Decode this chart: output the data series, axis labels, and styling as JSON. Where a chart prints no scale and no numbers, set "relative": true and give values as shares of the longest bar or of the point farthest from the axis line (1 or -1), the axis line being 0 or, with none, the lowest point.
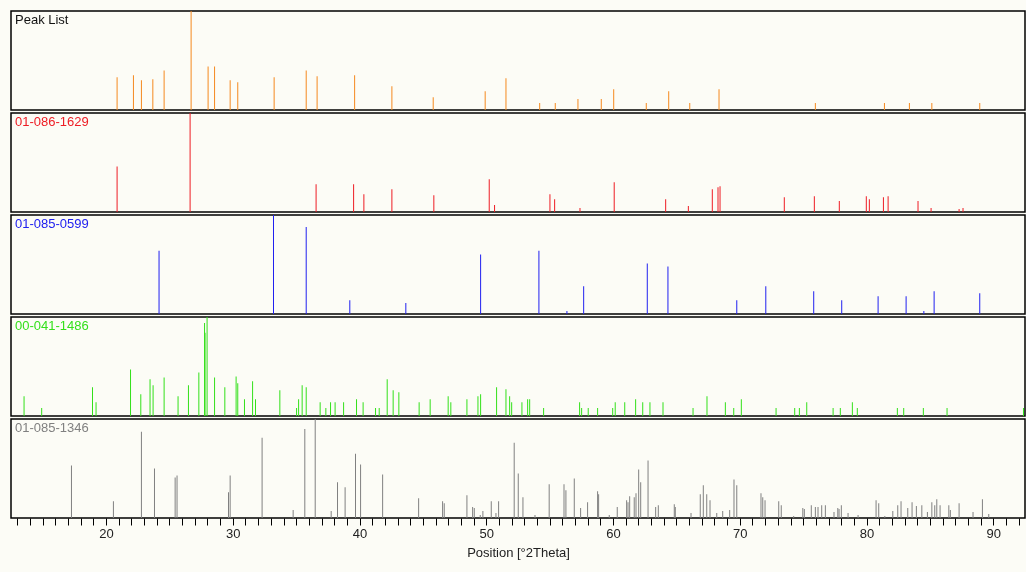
{
  "chart_data": [
    {
      "type": "bar",
      "title": "Peak List",
      "relative": true,
      "xlim": [
        12.5,
        92.5
      ],
      "tick_labels": false,
      "x": [
        20.87,
        22.16,
        22.79,
        23.69,
        24.58,
        26.71,
        28.05,
        28.56,
        29.79,
        30.39,
        33.26,
        35.79,
        36.65,
        39.61,
        42.55,
        45.81,
        49.91,
        51.55,
        54.21,
        55.44,
        57.23,
        59.07,
        60.05,
        62.62,
        64.39,
        66.05,
        68.36,
        75.96,
        81.41,
        83.38,
        85.15,
        88.93
      ],
      "series": [
        {
          "color": "#f5891f",
          "values": [
            0.33,
            0.35,
            0.3,
            0.31,
            0.4,
            1,
            0.44,
            0.44,
            0.3,
            0.28,
            0.33,
            0.4,
            0.34,
            0.35,
            0.24,
            0.13,
            0.19,
            0.32,
            0.07,
            0.07,
            0.11,
            0.11,
            0.21,
            0.07,
            0.19,
            0.07,
            0.21,
            0.07,
            0.07,
            0.07,
            0.07,
            0.07
          ]
        }
      ]
    },
    {
      "type": "bar",
      "relative": true,
      "xlim": [
        12.5,
        92.5
      ],
      "tick_labels": false,
      "x": [
        20.87,
        26.63,
        36.57,
        39.53,
        40.34,
        42.55,
        45.86,
        50.23,
        50.65,
        55.02,
        55.39,
        57.39,
        60.09,
        64.15,
        65.94,
        67.83,
        68.28,
        68.44,
        73.51,
        75.88,
        77.85,
        79.98,
        80.22,
        81.33,
        81.7,
        84.06,
        85.09,
        87.3,
        87.61
      ],
      "series": [
        {
          "name": "01-086-1629",
          "color": "#ee1c24",
          "values": [
            0.46,
            1,
            0.28,
            0.28,
            0.18,
            0.23,
            0.17,
            0.33,
            0.07,
            0.18,
            0.13,
            0.04,
            0.3,
            0.13,
            0.06,
            0.23,
            0.25,
            0.26,
            0.15,
            0.16,
            0.11,
            0.16,
            0.13,
            0.15,
            0.16,
            0.11,
            0.04,
            0.03,
            0.04
          ]
        }
      ]
    },
    {
      "type": "bar",
      "relative": true,
      "xlim": [
        12.5,
        92.5
      ],
      "tick_labels": false,
      "x": [
        24.18,
        33.21,
        35.79,
        39.23,
        43.65,
        49.55,
        54.15,
        56.36,
        57.68,
        62.7,
        64.33,
        69.76,
        72.05,
        75.83,
        78.04,
        80.91,
        83.12,
        84.52,
        85.33,
        88.93
      ],
      "series": [
        {
          "name": "01-085-0599",
          "color": "#2020f0",
          "values": [
            0.64,
            1,
            0.88,
            0.14,
            0.11,
            0.6,
            0.64,
            0.03,
            0.28,
            0.51,
            0.48,
            0.14,
            0.28,
            0.23,
            0.14,
            0.18,
            0.18,
            0.03,
            0.23,
            0.21
          ]
        }
      ]
    },
    {
      "type": "bar",
      "relative": true,
      "xlim": [
        12.5,
        92.5
      ],
      "tick_labels": false,
      "x": [
        13.53,
        14.92,
        18.93,
        19.21,
        21.93,
        22.74,
        23.47,
        23.71,
        24.58,
        25.68,
        26.5,
        27.32,
        27.77,
        27.81,
        27.97,
        28.56,
        29.37,
        30.26,
        30.39,
        30.92,
        31.56,
        31.79,
        33.71,
        35.03,
        35.19,
        35.47,
        35.79,
        36.89,
        37.34,
        37.71,
        38.07,
        38.74,
        39.76,
        40.28,
        41.26,
        41.55,
        42.18,
        42.65,
        43.1,
        44.7,
        45.57,
        46.99,
        47.2,
        48.47,
        49.34,
        49.55,
        50.81,
        51.55,
        51.84,
        52.0,
        52.81,
        53.26,
        53.42,
        54.52,
        57.36,
        57.52,
        58.04,
        58.78,
        59.97,
        60.17,
        60.92,
        61.78,
        62.34,
        62.91,
        63.94,
        66.31,
        67.41,
        68.86,
        69.52,
        70.12,
        72.86,
        74.33,
        74.7,
        75.28,
        77.36,
        77.93,
        78.88,
        79.27,
        82.43,
        82.93,
        84.48,
        86.35,
        92.38
      ],
      "series": [
        {
          "name": "00-041-1486",
          "color": "#33e01a",
          "values": [
            0.2,
            0.08,
            0.29,
            0.14,
            0.47,
            0.22,
            0.37,
            0.31,
            0.39,
            0.2,
            0.31,
            0.44,
            0.94,
            0.84,
            1,
            0.39,
            0.29,
            0.4,
            0.33,
            0.17,
            0.35,
            0.17,
            0.26,
            0.08,
            0.17,
            0.31,
            0.29,
            0.14,
            0.08,
            0.14,
            0.14,
            0.14,
            0.17,
            0.14,
            0.08,
            0.08,
            0.37,
            0.26,
            0.24,
            0.14,
            0.17,
            0.2,
            0.14,
            0.17,
            0.2,
            0.22,
            0.29,
            0.27,
            0.2,
            0.14,
            0.14,
            0.17,
            0.17,
            0.08,
            0.14,
            0.08,
            0.08,
            0.08,
            0.08,
            0.14,
            0.14,
            0.17,
            0.14,
            0.14,
            0.14,
            0.08,
            0.2,
            0.14,
            0.08,
            0.17,
            0.08,
            0.08,
            0.08,
            0.14,
            0.08,
            0.08,
            0.14,
            0.08,
            0.08,
            0.08,
            0.08,
            0.08,
            0.08
          ]
        }
      ]
    },
    {
      "type": "bar",
      "relative": true,
      "xlim": [
        12.5,
        92.5
      ],
      "xlabel": "Position [°2Theta]",
      "xticks": [
        {
          "value": 13,
          "label": null
        },
        {
          "value": 14,
          "label": null
        },
        {
          "value": 15,
          "label": null
        },
        {
          "value": 16,
          "label": null
        },
        {
          "value": 17,
          "label": null
        },
        {
          "value": 18,
          "label": null
        },
        {
          "value": 19,
          "label": null
        },
        20,
        {
          "value": 21,
          "label": null
        },
        {
          "value": 22,
          "label": null
        },
        {
          "value": 23,
          "label": null
        },
        {
          "value": 24,
          "label": null
        },
        {
          "value": 25,
          "label": null
        },
        {
          "value": 26,
          "label": null
        },
        {
          "value": 27,
          "label": null
        },
        {
          "value": 28,
          "label": null
        },
        {
          "value": 29,
          "label": null
        },
        30,
        {
          "value": 31,
          "label": null
        },
        {
          "value": 32,
          "label": null
        },
        {
          "value": 33,
          "label": null
        },
        {
          "value": 34,
          "label": null
        },
        {
          "value": 35,
          "label": null
        },
        {
          "value": 36,
          "label": null
        },
        {
          "value": 37,
          "label": null
        },
        {
          "value": 38,
          "label": null
        },
        {
          "value": 39,
          "label": null
        },
        40,
        {
          "value": 41,
          "label": null
        },
        {
          "value": 42,
          "label": null
        },
        {
          "value": 43,
          "label": null
        },
        {
          "value": 44,
          "label": null
        },
        {
          "value": 45,
          "label": null
        },
        {
          "value": 46,
          "label": null
        },
        {
          "value": 47,
          "label": null
        },
        {
          "value": 48,
          "label": null
        },
        {
          "value": 49,
          "label": null
        },
        50,
        {
          "value": 51,
          "label": null
        },
        {
          "value": 52,
          "label": null
        },
        {
          "value": 53,
          "label": null
        },
        {
          "value": 54,
          "label": null
        },
        {
          "value": 55,
          "label": null
        },
        {
          "value": 56,
          "label": null
        },
        {
          "value": 57,
          "label": null
        },
        {
          "value": 58,
          "label": null
        },
        {
          "value": 59,
          "label": null
        },
        60,
        {
          "value": 61,
          "label": null
        },
        {
          "value": 62,
          "label": null
        },
        {
          "value": 63,
          "label": null
        },
        {
          "value": 64,
          "label": null
        },
        {
          "value": 65,
          "label": null
        },
        {
          "value": 66,
          "label": null
        },
        {
          "value": 67,
          "label": null
        },
        {
          "value": 68,
          "label": null
        },
        {
          "value": 69,
          "label": null
        },
        70,
        {
          "value": 71,
          "label": null
        },
        {
          "value": 72,
          "label": null
        },
        {
          "value": 73,
          "label": null
        },
        {
          "value": 74,
          "label": null
        },
        {
          "value": 75,
          "label": null
        },
        {
          "value": 76,
          "label": null
        },
        {
          "value": 77,
          "label": null
        },
        {
          "value": 78,
          "label": null
        },
        {
          "value": 79,
          "label": null
        },
        80,
        {
          "value": 81,
          "label": null
        },
        {
          "value": 82,
          "label": null
        },
        {
          "value": 83,
          "label": null
        },
        {
          "value": 84,
          "label": null
        },
        {
          "value": 85,
          "label": null
        },
        {
          "value": 86,
          "label": null
        },
        {
          "value": 87,
          "label": null
        },
        {
          "value": 88,
          "label": null
        },
        {
          "value": 89,
          "label": null
        },
        90,
        {
          "value": 91,
          "label": null
        },
        {
          "value": 92,
          "label": null
        }
      ],
      "x": [
        17.27,
        20.58,
        22.79,
        23.82,
        25.45,
        25.6,
        29.66,
        29.79,
        32.31,
        34.76,
        35.68,
        36.5,
        37.76,
        38.26,
        38.86,
        39.68,
        40.08,
        41.82,
        44.66,
        46.55,
        46.68,
        48.47,
        48.92,
        49.05,
        49.52,
        49.73,
        50.39,
        50.76,
        50.97,
        52.2,
        52.52,
        52.89,
        53.84,
        54.96,
        56.13,
        56.28,
        56.94,
        57.44,
        57.99,
        58.78,
        58.86,
        59.7,
        60.33,
        61.07,
        61.18,
        61.31,
        61.67,
        61.81,
        62.02,
        62.18,
        62.76,
        63.36,
        63.57,
        64.83,
        64.91,
        66.15,
        66.88,
        67.12,
        67.39,
        67.65,
        68.18,
        68.65,
        69.2,
        69.54,
        69.76,
        71.67,
        71.81,
        71.99,
        73.07,
        73.27,
        74.25,
        74.97,
        75.09,
        75.64,
        75.96,
        76.17,
        76.46,
        76.75,
        77.43,
        77.73,
        77.83,
        78.01,
        78.54,
        79.33,
        80.75,
        80.96,
        81.44,
        82.07,
        82.46,
        82.72,
        83.25,
        83.59,
        83.93,
        84.36,
        84.8,
        85.15,
        85.38,
        85.54,
        85.8,
        86.49,
        86.61,
        87.3,
        88.4,
        89.14,
        89.64
      ],
      "series": [
        {
          "name": "01-085-1346",
          "color": "#808080",
          "values": [
            0.53,
            0.17,
            0.87,
            0.5,
            0.41,
            0.43,
            0.26,
            0.43,
            0.81,
            0.08,
            0.9,
            1,
            0.07,
            0.36,
            0.31,
            0.65,
            0.54,
            0.44,
            0.2,
            0.17,
            0.15,
            0.23,
            0.11,
            0.1,
            0.03,
            0.07,
            0.17,
            0.05,
            0.17,
            0.76,
            0.45,
            0.21,
            0.03,
            0.34,
            0.34,
            0.28,
            0.4,
            0.1,
            0.16,
            0.27,
            0.24,
            0.03,
            0.11,
            0.18,
            0.16,
            0.22,
            0.21,
            0.25,
            0.49,
            0.36,
            0.58,
            0.11,
            0.13,
            0.14,
            0.11,
            0.05,
            0.24,
            0.33,
            0.24,
            0.18,
            0.05,
            0.07,
            0.08,
            0.39,
            0.33,
            0.25,
            0.21,
            0.18,
            0.17,
            0.13,
            0.02,
            0.1,
            0.09,
            0.13,
            0.11,
            0.11,
            0.13,
            0.13,
            0.06,
            0.1,
            0.09,
            0.13,
            0.05,
            0.03,
            0.18,
            0.15,
            0.02,
            0.07,
            0.13,
            0.17,
            0.1,
            0.16,
            0.12,
            0.13,
            0.06,
            0.16,
            0.13,
            0.19,
            0.13,
            0.13,
            0.08,
            0.15,
            0.06,
            0.19,
            0.04
          ]
        }
      ]
    }
  ]
}
